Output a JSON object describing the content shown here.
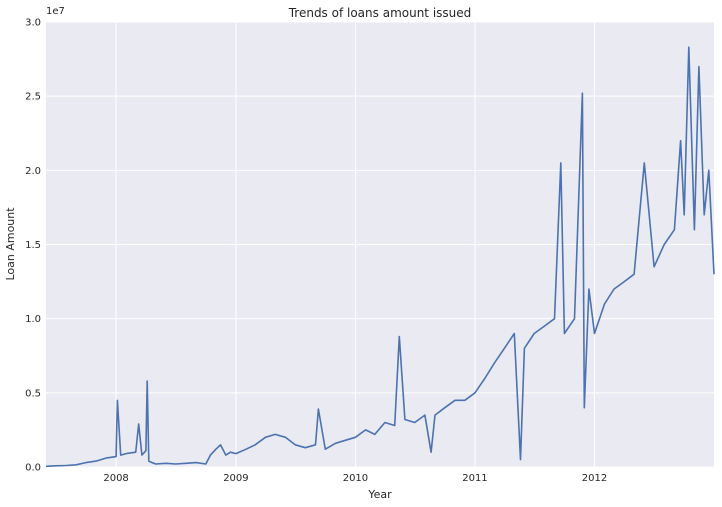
{
  "chart_data": {
    "type": "line",
    "title": "Trends of loans amount issued",
    "xlabel": "Year",
    "ylabel": "Loan Amount",
    "offset_label": "1e7",
    "xlim": [
      "2007-06-01",
      "2012-12-31"
    ],
    "ylim": [
      0,
      30000000
    ],
    "x_ticks": [
      "2008",
      "2009",
      "2010",
      "2011",
      "2012"
    ],
    "y_ticks": [
      "0.0",
      "0.5",
      "1.0",
      "1.5",
      "2.0",
      "2.5",
      "3.0"
    ],
    "y_tick_values": [
      0,
      5000000,
      10000000,
      15000000,
      20000000,
      25000000,
      30000000
    ],
    "grid": true,
    "series": [
      {
        "color": "#4c72b0",
        "x": [
          "2007-06-01",
          "2007-07-01",
          "2007-08-01",
          "2007-09-01",
          "2007-10-01",
          "2007-11-01",
          "2007-12-01",
          "2008-01-01",
          "2008-01-05",
          "2008-01-15",
          "2008-02-01",
          "2008-03-01",
          "2008-03-10",
          "2008-03-20",
          "2008-04-01",
          "2008-04-05",
          "2008-04-10",
          "2008-04-20",
          "2008-05-01",
          "2008-06-01",
          "2008-07-01",
          "2008-08-01",
          "2008-09-01",
          "2008-10-01",
          "2008-10-15",
          "2008-11-01",
          "2008-11-15",
          "2008-12-01",
          "2008-12-15",
          "2009-01-01",
          "2009-02-01",
          "2009-03-01",
          "2009-04-01",
          "2009-05-01",
          "2009-06-01",
          "2009-07-01",
          "2009-08-01",
          "2009-09-01",
          "2009-09-10",
          "2009-10-01",
          "2009-11-01",
          "2009-12-01",
          "2010-01-01",
          "2010-02-01",
          "2010-03-01",
          "2010-04-01",
          "2010-05-01",
          "2010-05-15",
          "2010-06-01",
          "2010-07-01",
          "2010-08-01",
          "2010-08-20",
          "2010-09-01",
          "2010-10-01",
          "2010-11-01",
          "2010-12-01",
          "2011-01-01",
          "2011-02-01",
          "2011-03-01",
          "2011-04-01",
          "2011-05-01",
          "2011-05-20",
          "2011-06-01",
          "2011-07-01",
          "2011-08-01",
          "2011-09-01",
          "2011-09-20",
          "2011-10-01",
          "2011-11-01",
          "2011-11-25",
          "2011-12-01",
          "2011-12-15",
          "2012-01-01",
          "2012-02-01",
          "2012-03-01",
          "2012-04-01",
          "2012-05-01",
          "2012-06-01",
          "2012-07-01",
          "2012-08-01",
          "2012-09-01",
          "2012-09-20",
          "2012-10-01",
          "2012-10-15",
          "2012-11-01",
          "2012-11-15",
          "2012-12-01",
          "2012-12-15",
          "2012-12-31"
        ],
        "y": [
          50000,
          80000,
          100000,
          150000,
          300000,
          400000,
          600000,
          700000,
          4500000,
          800000,
          900000,
          1000000,
          2900000,
          800000,
          1100000,
          5800000,
          400000,
          300000,
          200000,
          250000,
          200000,
          250000,
          300000,
          200000,
          800000,
          1200000,
          1500000,
          800000,
          1000000,
          900000,
          1200000,
          1500000,
          2000000,
          2200000,
          2000000,
          1500000,
          1300000,
          1500000,
          3900000,
          1200000,
          1600000,
          1800000,
          2000000,
          2500000,
          2200000,
          3000000,
          2800000,
          8800000,
          3200000,
          3000000,
          3500000,
          1000000,
          3500000,
          4000000,
          4500000,
          4500000,
          5000000,
          6000000,
          7000000,
          8000000,
          9000000,
          500000,
          8000000,
          9000000,
          9500000,
          10000000,
          20500000,
          9000000,
          10000000,
          25200000,
          4000000,
          12000000,
          9000000,
          11000000,
          12000000,
          12500000,
          13000000,
          20500000,
          13500000,
          15000000,
          16000000,
          22000000,
          17000000,
          28300000,
          16000000,
          27000000,
          17000000,
          20000000,
          13000000
        ]
      }
    ]
  }
}
